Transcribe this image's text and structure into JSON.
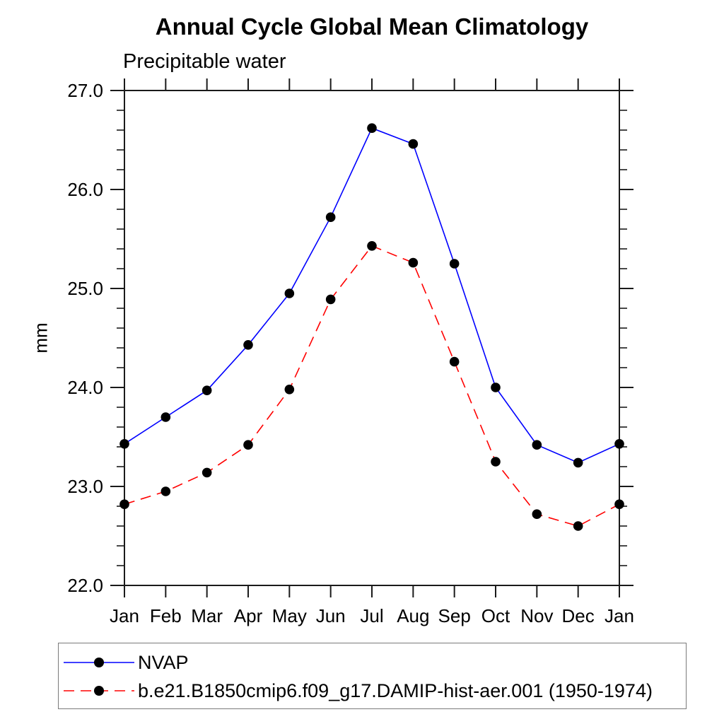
{
  "chart_data": {
    "type": "line",
    "title": "Annual Cycle Global Mean Climatology",
    "subtitle": "Precipitable water",
    "ylabel": "mm",
    "categories": [
      "Jan",
      "Feb",
      "Mar",
      "Apr",
      "May",
      "Jun",
      "Jul",
      "Aug",
      "Sep",
      "Oct",
      "Nov",
      "Dec",
      "Jan"
    ],
    "ylim": [
      22.0,
      27.0
    ],
    "y_major_ticks": [
      22.0,
      23.0,
      24.0,
      25.0,
      26.0,
      27.0
    ],
    "y_tick_labels": [
      "22.0",
      "23.0",
      "24.0",
      "25.0",
      "26.0",
      "27.0"
    ],
    "y_minor_step": 0.2,
    "grid": false,
    "legend_position": "bottom-left-box",
    "series": [
      {
        "name": "NVAP",
        "color": "#0000ff",
        "style": "solid",
        "marker": "filled-circle",
        "marker_color": "#000000",
        "values": [
          23.43,
          23.7,
          23.97,
          24.43,
          24.95,
          25.72,
          26.62,
          26.46,
          25.25,
          24.0,
          23.42,
          23.24,
          23.43
        ]
      },
      {
        "name": "b.e21.B1850cmip6.f09_g17.DAMIP-hist-aer.001 (1950-1974)",
        "color": "#ff0000",
        "style": "dashed",
        "marker": "filled-circle",
        "marker_color": "#000000",
        "values": [
          22.82,
          22.95,
          23.14,
          23.42,
          23.98,
          24.89,
          25.43,
          25.26,
          24.26,
          23.25,
          22.72,
          22.6,
          22.82
        ]
      }
    ],
    "axis_color": "#1a1a1a"
  }
}
